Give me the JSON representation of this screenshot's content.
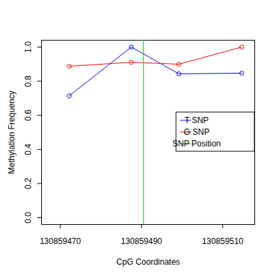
{
  "chart_data": {
    "type": "line",
    "x_label": "CpG Coordinates",
    "y_label": "Methylation Frequency",
    "xlim": [
      130859465.4,
      130859517.9
    ],
    "xticks": [
      130859470,
      130859490,
      130859510
    ],
    "ylim": [
      -0.04,
      1.04
    ],
    "yticks": [
      {
        "value": 0,
        "label": "0.0"
      },
      {
        "value": 0.2,
        "label": "0.2"
      },
      {
        "value": 0.4,
        "label": "0.4"
      },
      {
        "value": 0.6,
        "label": "0.6"
      },
      {
        "value": 0.8,
        "label": "0.8"
      },
      {
        "value": 1,
        "label": "1.0"
      }
    ],
    "legend": "right",
    "marker": "circle",
    "series": [
      {
        "name": "T SNP",
        "color": "#0000ff",
        "x": [
          130859472.2,
          130859487.5,
          130859499.2,
          130859514.7
        ],
        "values": [
          0.714,
          1.0,
          0.843,
          0.847
        ]
      },
      {
        "name": "G SNP",
        "color": "#ff0000",
        "x": [
          130859472.2,
          130859487.5,
          130859499.2,
          130859514.7
        ],
        "values": [
          0.887,
          0.911,
          0.899,
          1.0
        ]
      },
      {
        "name": "SNP Position",
        "color": "#00cc00",
        "type": "vline",
        "x": [
          130859490.5
        ]
      }
    ]
  }
}
